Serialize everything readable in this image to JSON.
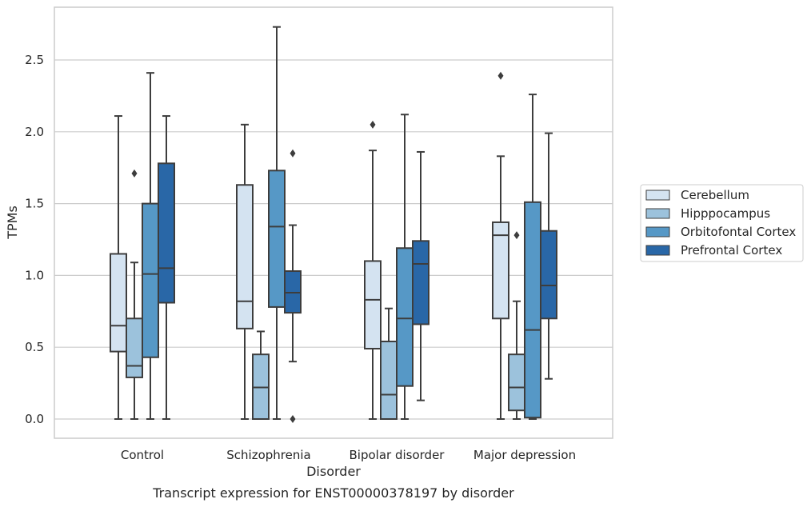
{
  "chart_data": {
    "type": "box",
    "caption": "Transcript expression for ENST00000378197 by disorder",
    "xlabel": "Disorder",
    "ylabel": "TPMs",
    "ylim": [
      -0.13,
      2.85
    ],
    "yticks": [
      "0.0",
      "0.5",
      "1.0",
      "1.5",
      "2.0",
      "2.5"
    ],
    "ytick_values": [
      0,
      0.5,
      1.0,
      1.5,
      2.0,
      2.5
    ],
    "grid": true,
    "legend_position": "right",
    "categories": [
      "Control",
      "Schizophrenia",
      "Bipolar disorder",
      "Major depression"
    ],
    "series": [
      {
        "name": "Cerebellum",
        "color": "#d4e3f1",
        "boxes": [
          {
            "whislo": 0.0,
            "q1": 0.47,
            "med": 0.65,
            "q3": 1.15,
            "whishi": 2.11,
            "fliers": []
          },
          {
            "whislo": 0.0,
            "q1": 0.63,
            "med": 0.82,
            "q3": 1.63,
            "whishi": 2.05,
            "fliers": []
          },
          {
            "whislo": 0.0,
            "q1": 0.49,
            "med": 0.83,
            "q3": 1.1,
            "whishi": 1.87,
            "fliers": [
              2.05
            ]
          },
          {
            "whislo": 0.0,
            "q1": 0.7,
            "med": 1.28,
            "q3": 1.37,
            "whishi": 1.83,
            "fliers": [
              2.39
            ]
          }
        ]
      },
      {
        "name": "Hipppocampus",
        "color": "#9cc2dc",
        "boxes": [
          {
            "whislo": 0.0,
            "q1": 0.29,
            "med": 0.37,
            "q3": 0.7,
            "whishi": 1.09,
            "fliers": [
              1.71
            ]
          },
          {
            "whislo": 0.0,
            "q1": 0.0,
            "med": 0.22,
            "q3": 0.45,
            "whishi": 0.61,
            "fliers": []
          },
          {
            "whislo": 0.0,
            "q1": 0.0,
            "med": 0.17,
            "q3": 0.54,
            "whishi": 0.77,
            "fliers": []
          },
          {
            "whislo": 0.0,
            "q1": 0.06,
            "med": 0.22,
            "q3": 0.45,
            "whishi": 0.82,
            "fliers": [
              1.28
            ]
          }
        ]
      },
      {
        "name": "Orbitofontal Cortex",
        "color": "#5698c6",
        "boxes": [
          {
            "whislo": 0.0,
            "q1": 0.43,
            "med": 1.01,
            "q3": 1.5,
            "whishi": 2.41,
            "fliers": []
          },
          {
            "whislo": 0.0,
            "q1": 0.78,
            "med": 1.34,
            "q3": 1.73,
            "whishi": 2.73,
            "fliers": []
          },
          {
            "whislo": 0.0,
            "q1": 0.23,
            "med": 0.7,
            "q3": 1.19,
            "whishi": 2.12,
            "fliers": []
          },
          {
            "whislo": 0.0,
            "q1": 0.01,
            "med": 0.62,
            "q3": 1.51,
            "whishi": 2.26,
            "fliers": []
          }
        ]
      },
      {
        "name": "Prefrontal Cortex",
        "color": "#2967a7",
        "boxes": [
          {
            "whislo": 0.0,
            "q1": 0.81,
            "med": 1.05,
            "q3": 1.78,
            "whishi": 2.11,
            "fliers": []
          },
          {
            "whislo": 0.4,
            "q1": 0.74,
            "med": 0.88,
            "q3": 1.03,
            "whishi": 1.35,
            "fliers": [
              1.85,
              0.0
            ]
          },
          {
            "whislo": 0.13,
            "q1": 0.66,
            "med": 1.08,
            "q3": 1.24,
            "whishi": 1.86,
            "fliers": []
          },
          {
            "whislo": 0.28,
            "q1": 0.7,
            "med": 0.93,
            "q3": 1.31,
            "whishi": 1.99,
            "fliers": []
          }
        ]
      }
    ]
  }
}
